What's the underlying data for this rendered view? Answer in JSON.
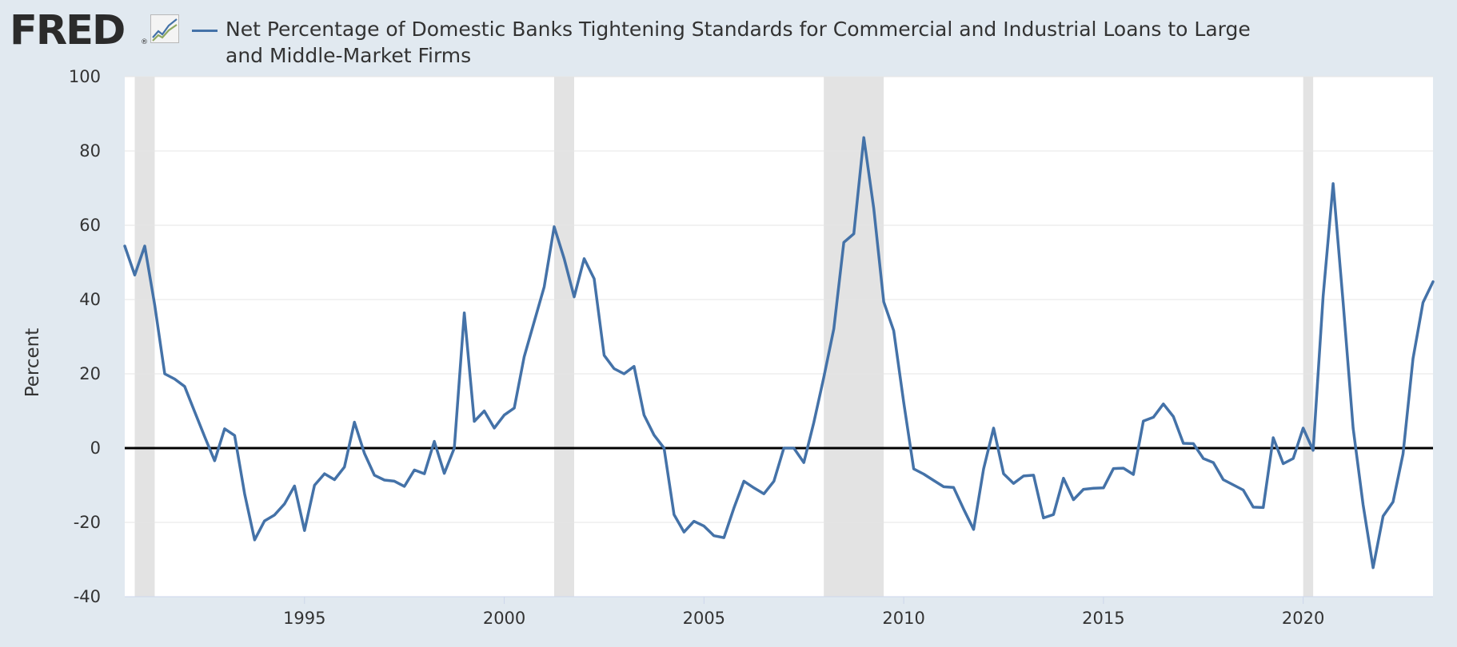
{
  "brand": {
    "name": "FRED",
    "registered": "®",
    "icon": "fred-trend-icon"
  },
  "legend": {
    "label": "Net Percentage of Domestic Banks Tightening Standards for Commercial and Industrial Loans to Large and Middle-Market Firms"
  },
  "colors": {
    "series": "#4472a8",
    "zero_line": "#000000",
    "recession": "#e3e3e3",
    "plot_bg": "#ffffff",
    "page_bg": "#e1e9f0",
    "grid": "#e6e6e6"
  },
  "chart_data": {
    "type": "line",
    "title": "",
    "xlabel": "",
    "ylabel": "Percent",
    "xlim": [
      1990.5,
      2023.25
    ],
    "ylim": [
      -40,
      100
    ],
    "yticks": [
      -40,
      -20,
      0,
      20,
      40,
      60,
      80,
      100
    ],
    "ytick_labels": [
      "-40",
      "-20",
      "0",
      "20",
      "40",
      "60",
      "80",
      "100"
    ],
    "xticks": [
      1995,
      2000,
      2005,
      2010,
      2015,
      2020
    ],
    "xtick_labels": [
      "1995",
      "2000",
      "2005",
      "2010",
      "2015",
      "2020"
    ],
    "grid": true,
    "zero_line": true,
    "recessions": [
      [
        1990.75,
        1991.25
      ],
      [
        2001.25,
        2001.75
      ],
      [
        2008.0,
        2009.5
      ],
      [
        2020.0,
        2020.25
      ]
    ],
    "series": [
      {
        "name": "Net Percentage of Domestic Banks Tightening Standards for Commercial and Industrial Loans to Large and Middle-Market Firms",
        "x": [
          1990.5,
          1990.75,
          1991.0,
          1991.25,
          1991.5,
          1991.75,
          1992.0,
          1992.25,
          1992.5,
          1992.75,
          1993.0,
          1993.25,
          1993.5,
          1993.75,
          1994.0,
          1994.25,
          1994.5,
          1994.75,
          1995.0,
          1995.25,
          1995.5,
          1995.75,
          1996.0,
          1996.25,
          1996.5,
          1996.75,
          1997.0,
          1997.25,
          1997.5,
          1997.75,
          1998.0,
          1998.25,
          1998.5,
          1998.75,
          1999.0,
          1999.25,
          1999.5,
          1999.75,
          2000.0,
          2000.25,
          2000.5,
          2000.75,
          2001.0,
          2001.25,
          2001.5,
          2001.75,
          2002.0,
          2002.25,
          2002.5,
          2002.75,
          2003.0,
          2003.25,
          2003.5,
          2003.75,
          2004.0,
          2004.25,
          2004.5,
          2004.75,
          2005.0,
          2005.25,
          2005.5,
          2005.75,
          2006.0,
          2006.25,
          2006.5,
          2006.75,
          2007.0,
          2007.25,
          2007.5,
          2007.75,
          2008.0,
          2008.25,
          2008.5,
          2008.75,
          2009.0,
          2009.25,
          2009.5,
          2009.75,
          2010.0,
          2010.25,
          2010.5,
          2010.75,
          2011.0,
          2011.25,
          2011.5,
          2011.75,
          2012.0,
          2012.25,
          2012.5,
          2012.75,
          2013.0,
          2013.25,
          2013.5,
          2013.75,
          2014.0,
          2014.25,
          2014.5,
          2014.75,
          2015.0,
          2015.25,
          2015.5,
          2015.75,
          2016.0,
          2016.25,
          2016.5,
          2016.75,
          2017.0,
          2017.25,
          2017.5,
          2017.75,
          2018.0,
          2018.25,
          2018.5,
          2018.75,
          2019.0,
          2019.25,
          2019.5,
          2019.75,
          2020.0,
          2020.25,
          2020.5,
          2020.75,
          2021.0,
          2021.25,
          2021.5,
          2021.75,
          2022.0,
          2022.25,
          2022.5,
          2022.75,
          2023.0,
          2023.25
        ],
        "values": [
          54.4,
          46.6,
          54.4,
          38.5,
          20.0,
          18.6,
          16.6,
          9.8,
          3.1,
          -3.4,
          5.2,
          3.4,
          -12.3,
          -24.7,
          -19.6,
          -18.0,
          -15.0,
          -10.2,
          -22.2,
          -10.0,
          -6.9,
          -8.5,
          -5.1,
          7.0,
          -1.4,
          -7.3,
          -8.6,
          -8.9,
          -10.3,
          -5.9,
          -6.9,
          1.8,
          -6.8,
          0.0,
          36.4,
          7.2,
          10.0,
          5.4,
          8.9,
          10.8,
          24.6,
          34.0,
          43.4,
          59.6,
          51.0,
          40.7,
          51.0,
          45.6,
          25.0,
          21.4,
          20.0,
          22.0,
          8.9,
          3.5,
          0.0,
          -17.9,
          -22.6,
          -19.7,
          -21.0,
          -23.6,
          -24.1,
          -16.1,
          -8.9,
          -10.7,
          -12.3,
          -8.9,
          0.0,
          0.0,
          -3.9,
          6.9,
          19.1,
          32.1,
          55.4,
          57.7,
          83.6,
          64.6,
          39.4,
          31.6,
          12.3,
          -5.6,
          -7.0,
          -8.7,
          -10.4,
          -10.6,
          -16.4,
          -21.9,
          -5.6,
          5.4,
          -6.9,
          -9.5,
          -7.5,
          -7.3,
          -18.8,
          -17.9,
          -8.1,
          -13.9,
          -11.1,
          -10.8,
          -10.7,
          -5.5,
          -5.4,
          -7.1,
          7.3,
          8.3,
          11.9,
          8.5,
          1.3,
          1.2,
          -2.8,
          -3.9,
          -8.5,
          -9.9,
          -11.3,
          -15.9,
          -16.0,
          2.8,
          -4.2,
          -2.8,
          5.4,
          -0.6,
          40.9,
          71.2,
          39.2,
          5.4,
          -15.3,
          -32.2,
          -18.3,
          -14.5,
          -1.6,
          24.1,
          39.2,
          44.8
        ]
      }
    ]
  }
}
